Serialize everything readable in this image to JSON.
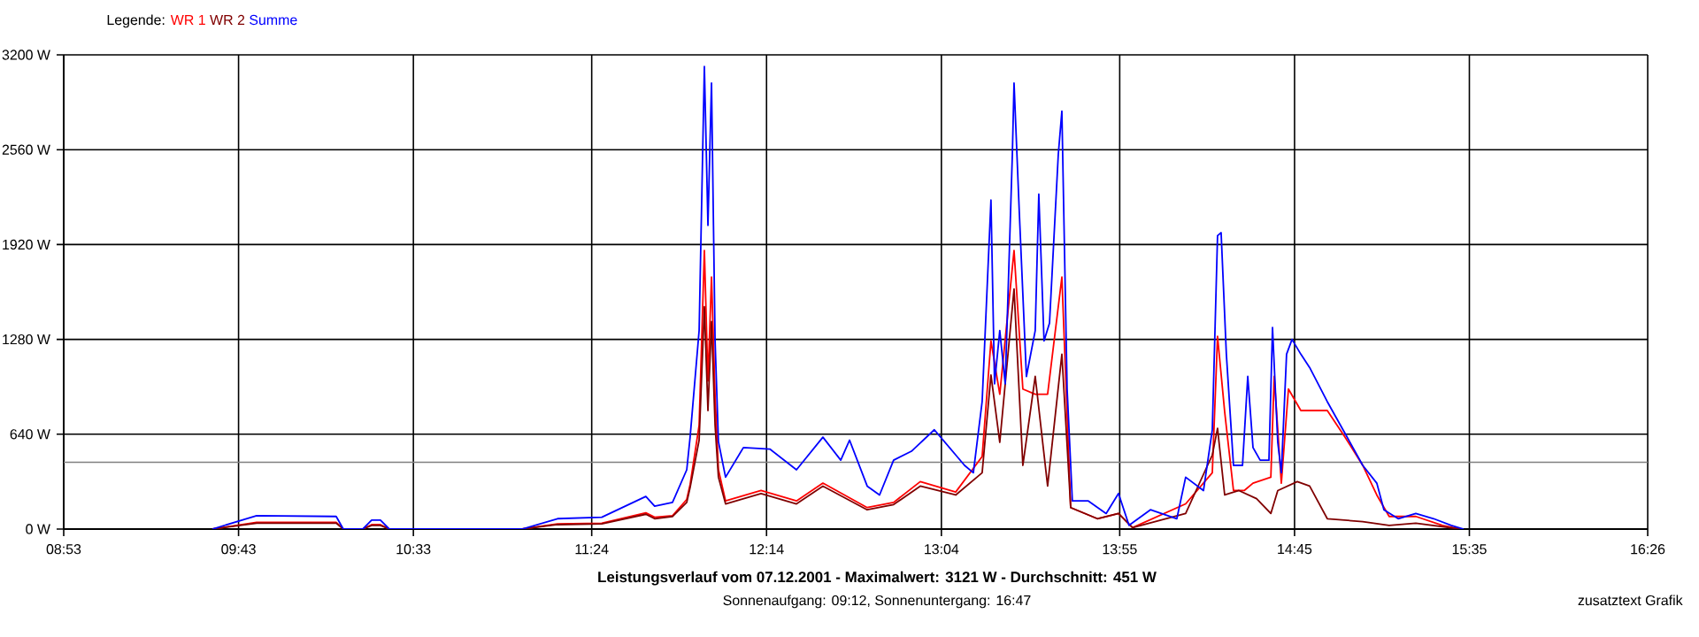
{
  "chart_data": {
    "type": "line",
    "title": "Leistungsverlauf vom 07.12.2001 - Maximalwert: 3121 W - Durchschnitt: 451 W",
    "subtitle": "Sonnenaufgang: 09:12, Sonnenuntergang: 16:47",
    "legend_title": "Legende:",
    "legend": "top left",
    "grid": true,
    "marker": "none",
    "line_style": "solid",
    "xlim": [
      8.8833,
      16.4333
    ],
    "ylim": [
      0,
      3200
    ],
    "xticks": [
      {
        "value": 8.8833,
        "label": "08:53"
      },
      {
        "value": 9.7167,
        "label": "09:43"
      },
      {
        "value": 10.55,
        "label": "10:33"
      },
      {
        "value": 11.4,
        "label": "11:24"
      },
      {
        "value": 12.2333,
        "label": "12:14"
      },
      {
        "value": 13.0667,
        "label": "13:04"
      },
      {
        "value": 13.9167,
        "label": "13:55"
      },
      {
        "value": 14.75,
        "label": "14:45"
      },
      {
        "value": 15.5833,
        "label": "15:35"
      },
      {
        "value": 16.4333,
        "label": "16:26"
      }
    ],
    "yticks": [
      {
        "value": 0,
        "label": "0 W"
      },
      {
        "value": 640,
        "label": "640 W"
      },
      {
        "value": 1280,
        "label": "1280 W"
      },
      {
        "value": 1920,
        "label": "1920 W"
      },
      {
        "value": 2560,
        "label": "2560 W"
      },
      {
        "value": 3200,
        "label": "3200 W"
      }
    ],
    "ref_lines": [
      {
        "axis": "y",
        "value": 451,
        "color": "#808080"
      }
    ],
    "annotations": [
      "zusatztext Grafik"
    ],
    "series": [
      {
        "name": "WR 1",
        "color": "#ff0000",
        "x": [
          9.592,
          9.803,
          10.182,
          10.216,
          10.309,
          10.351,
          10.393,
          10.435,
          11.068,
          11.237,
          11.448,
          11.658,
          11.7,
          11.785,
          11.853,
          11.869,
          11.912,
          11.937,
          11.954,
          11.971,
          11.988,
          12.004,
          12.038,
          12.207,
          12.376,
          12.502,
          12.713,
          12.839,
          12.966,
          13.135,
          13.261,
          13.303,
          13.345,
          13.413,
          13.455,
          13.514,
          13.573,
          13.641,
          13.683,
          13.81,
          13.911,
          13.978,
          14.231,
          14.358,
          14.383,
          14.417,
          14.459,
          14.51,
          14.552,
          14.637,
          14.653,
          14.687,
          14.721,
          14.78,
          14.906,
          14.991,
          15.075,
          15.142,
          15.201,
          15.328,
          15.455,
          15.539
        ],
        "values": [
          0,
          45,
          45,
          0,
          0,
          30,
          30,
          0,
          0,
          35,
          40,
          110,
          80,
          90,
          200,
          300,
          700,
          1880,
          1000,
          1700,
          900,
          400,
          190,
          260,
          190,
          310,
          145,
          180,
          320,
          250,
          490,
          1270,
          910,
          1880,
          945,
          910,
          910,
          1700,
          145,
          70,
          105,
          10,
          170,
          380,
          1300,
          790,
          260,
          260,
          310,
          350,
          1030,
          310,
          945,
          800,
          800,
          620,
          430,
          230,
          85,
          85,
          25,
          0
        ]
      },
      {
        "name": "WR 2",
        "color": "#800000",
        "x": [
          9.592,
          9.803,
          10.182,
          10.216,
          10.309,
          10.351,
          10.393,
          10.435,
          11.068,
          11.237,
          11.448,
          11.658,
          11.7,
          11.785,
          11.853,
          11.869,
          11.912,
          11.937,
          11.954,
          11.971,
          11.988,
          12.004,
          12.038,
          12.207,
          12.376,
          12.502,
          12.713,
          12.839,
          12.966,
          13.135,
          13.261,
          13.303,
          13.345,
          13.413,
          13.455,
          13.514,
          13.573,
          13.641,
          13.683,
          13.81,
          13.911,
          13.978,
          14.231,
          14.358,
          14.383,
          14.417,
          14.485,
          14.569,
          14.637,
          14.67,
          14.763,
          14.822,
          14.906,
          15.075,
          15.201,
          15.328,
          15.539
        ],
        "values": [
          0,
          40,
          40,
          0,
          0,
          25,
          25,
          0,
          0,
          30,
          35,
          100,
          70,
          85,
          180,
          280,
          600,
          1500,
          800,
          1400,
          700,
          350,
          170,
          240,
          170,
          290,
          130,
          165,
          290,
          230,
          380,
          1040,
          585,
          1620,
          430,
          1030,
          290,
          1180,
          145,
          70,
          105,
          10,
          105,
          500,
          680,
          230,
          260,
          205,
          105,
          260,
          320,
          290,
          70,
          50,
          25,
          40,
          0
        ]
      },
      {
        "name": "Summe",
        "color": "#0000ff",
        "x": [
          9.592,
          9.803,
          10.182,
          10.216,
          10.309,
          10.351,
          10.393,
          10.435,
          11.068,
          11.237,
          11.448,
          11.658,
          11.7,
          11.785,
          11.853,
          11.869,
          11.912,
          11.937,
          11.954,
          11.971,
          11.988,
          12.004,
          12.038,
          12.123,
          12.249,
          12.376,
          12.502,
          12.587,
          12.629,
          12.713,
          12.772,
          12.839,
          12.924,
          13.033,
          13.135,
          13.177,
          13.219,
          13.261,
          13.303,
          13.32,
          13.345,
          13.371,
          13.405,
          13.413,
          13.438,
          13.472,
          13.514,
          13.531,
          13.556,
          13.582,
          13.624,
          13.641,
          13.666,
          13.691,
          13.767,
          13.852,
          13.911,
          13.961,
          14.063,
          14.189,
          14.231,
          14.316,
          14.358,
          14.383,
          14.4,
          14.425,
          14.459,
          14.502,
          14.527,
          14.552,
          14.586,
          14.628,
          14.645,
          14.67,
          14.687,
          14.712,
          14.738,
          14.78,
          14.822,
          14.906,
          14.991,
          15.075,
          15.142,
          15.176,
          15.244,
          15.328,
          15.413,
          15.497,
          15.556
        ],
        "values": [
          0,
          90,
          85,
          0,
          0,
          60,
          60,
          0,
          0,
          70,
          80,
          220,
          155,
          180,
          400,
          620,
          1340,
          3121,
          2050,
          3010,
          1270,
          590,
          350,
          550,
          540,
          400,
          620,
          465,
          600,
          290,
          230,
          465,
          525,
          670,
          500,
          430,
          380,
          860,
          2220,
          980,
          1340,
          980,
          2530,
          3010,
          2140,
          1030,
          1340,
          2260,
          1270,
          1390,
          2530,
          2820,
          945,
          190,
          190,
          105,
          240,
          25,
          130,
          70,
          350,
          260,
          670,
          1980,
          2000,
          1180,
          430,
          430,
          1030,
          550,
          465,
          465,
          1360,
          585,
          380,
          1180,
          1280,
          1180,
          1090,
          860,
          645,
          430,
          310,
          130,
          70,
          105,
          70,
          25,
          0
        ]
      }
    ]
  }
}
